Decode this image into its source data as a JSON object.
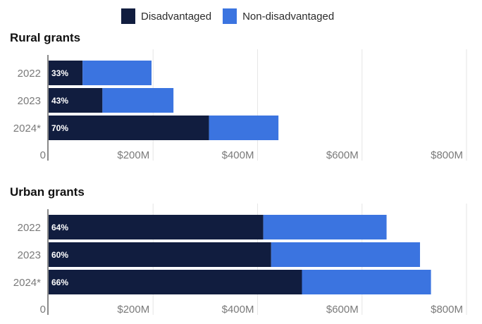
{
  "legend": {
    "items": [
      {
        "label": "Disadvantaged",
        "color": "#111d3f"
      },
      {
        "label": "Non-disadvantaged",
        "color": "#3b74e0"
      }
    ]
  },
  "colors": {
    "disadvantaged": "#111d3f",
    "non_disadvantaged": "#3b74e0",
    "grid": "#e6e6e6",
    "axis": "#8a8a8a",
    "tick_label": "#7a7a7a"
  },
  "chart_data": [
    {
      "type": "bar",
      "orientation": "horizontal",
      "stacked": true,
      "title": "Rural grants",
      "categories": [
        "2022",
        "2023",
        "2024*"
      ],
      "series": [
        {
          "name": "Disadvantaged",
          "values": [
            65,
            103,
            307
          ]
        },
        {
          "name": "Non-disadvantaged",
          "values": [
            132,
            136,
            133
          ]
        }
      ],
      "data_labels": [
        "33%",
        "43%",
        "70%"
      ],
      "xlim": [
        0,
        800
      ],
      "xticks": [
        0,
        200,
        400,
        600,
        800
      ],
      "xtick_labels": [
        "0",
        "$200M",
        "$400M",
        "$600M",
        "$800M"
      ],
      "grid": true
    },
    {
      "type": "bar",
      "orientation": "horizontal",
      "stacked": true,
      "title": "Urban grants",
      "categories": [
        "2022",
        "2023",
        "2024*"
      ],
      "series": [
        {
          "name": "Disadvantaged",
          "values": [
            411,
            426,
            485
          ]
        },
        {
          "name": "Non-disadvantaged",
          "values": [
            236,
            285,
            247
          ]
        }
      ],
      "data_labels": [
        "64%",
        "60%",
        "66%"
      ],
      "xlim": [
        0,
        800
      ],
      "xticks": [
        0,
        200,
        400,
        600,
        800
      ],
      "xtick_labels": [
        "0",
        "$200M",
        "$400M",
        "$600M",
        "$800M"
      ],
      "grid": true
    }
  ]
}
